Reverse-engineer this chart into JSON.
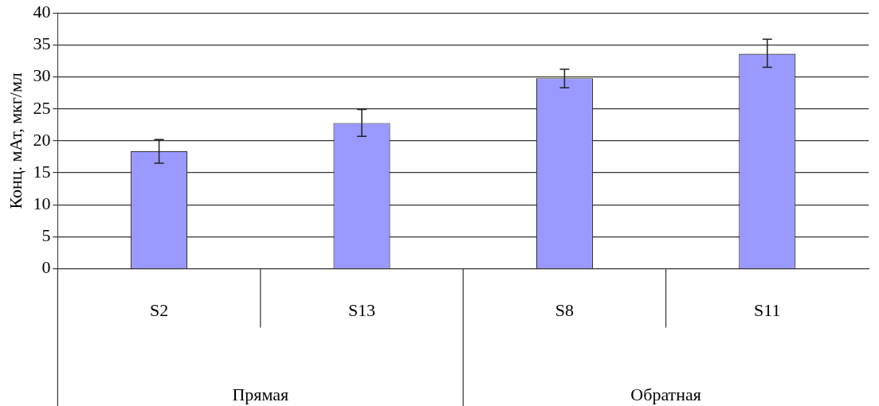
{
  "chart_data": {
    "type": "bar",
    "ylabel": "Конц. мАт, мкг/мл",
    "categories": [
      "S2",
      "S13",
      "S8",
      "S11"
    ],
    "values": [
      18.4,
      22.8,
      29.8,
      33.6
    ],
    "errors": [
      [
        16.5,
        20.2
      ],
      [
        20.7,
        24.9
      ],
      [
        28.3,
        31.2
      ],
      [
        31.5,
        35.9
      ]
    ],
    "color": "#9999ff",
    "ylim": [
      0,
      40
    ],
    "yticks": [
      0,
      5,
      10,
      15,
      20,
      25,
      30,
      35,
      40
    ],
    "grid": "y",
    "legend": false,
    "annotations": [
      "Прямая",
      "Обратная"
    ]
  }
}
